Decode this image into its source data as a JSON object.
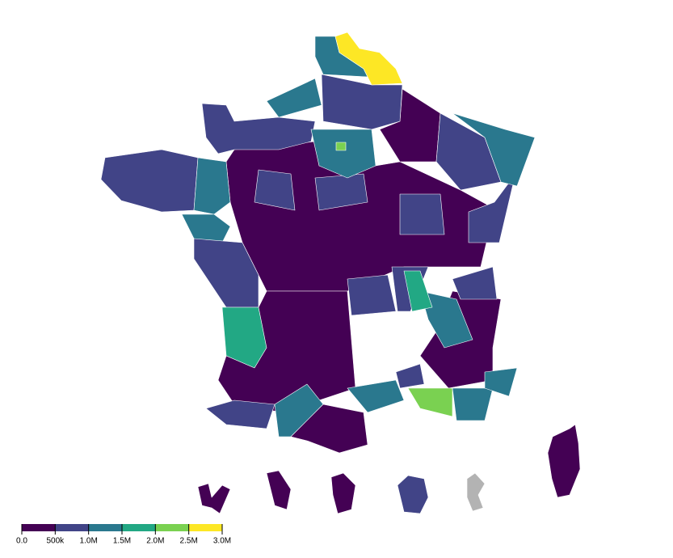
{
  "map": {
    "regions": {
      "values": [
        300000,
        680000,
        700000,
        530000,
        540000,
        480000,
        650000,
        760000,
        740000,
        900000,
        1050000,
        1400000,
        750000,
        1250000,
        1300000,
        2200000,
        550000,
        1400000,
        2600000,
        560000,
        1100000,
        650000,
        1600000,
        400000,
        680000,
        1400000,
        400000,
        1150000,
        450000,
        800000,
        1250000,
        1800000,
        2050000,
        1050000,
        1080000,
        380000,
        360000,
        280000,
        860000,
        null,
        340000
      ]
    },
    "colors": [
      "#440154",
      "#414487",
      "#2a788e",
      "#22a884",
      "#7ad151",
      "#fde725"
    ],
    "no_data_color": "#b3b3b3",
    "legend": {
      "ticks": [
        {
          "value": 0,
          "label": "0.0"
        },
        {
          "value": 500000,
          "label": "500k"
        },
        {
          "value": 1000000,
          "label": "1.0M"
        },
        {
          "value": 1500000,
          "label": "1.5M"
        },
        {
          "value": 2000000,
          "label": "2.0M"
        },
        {
          "value": 2500000,
          "label": "2.5M"
        },
        {
          "value": 3000000,
          "label": "3.0M"
        }
      ]
    }
  }
}
